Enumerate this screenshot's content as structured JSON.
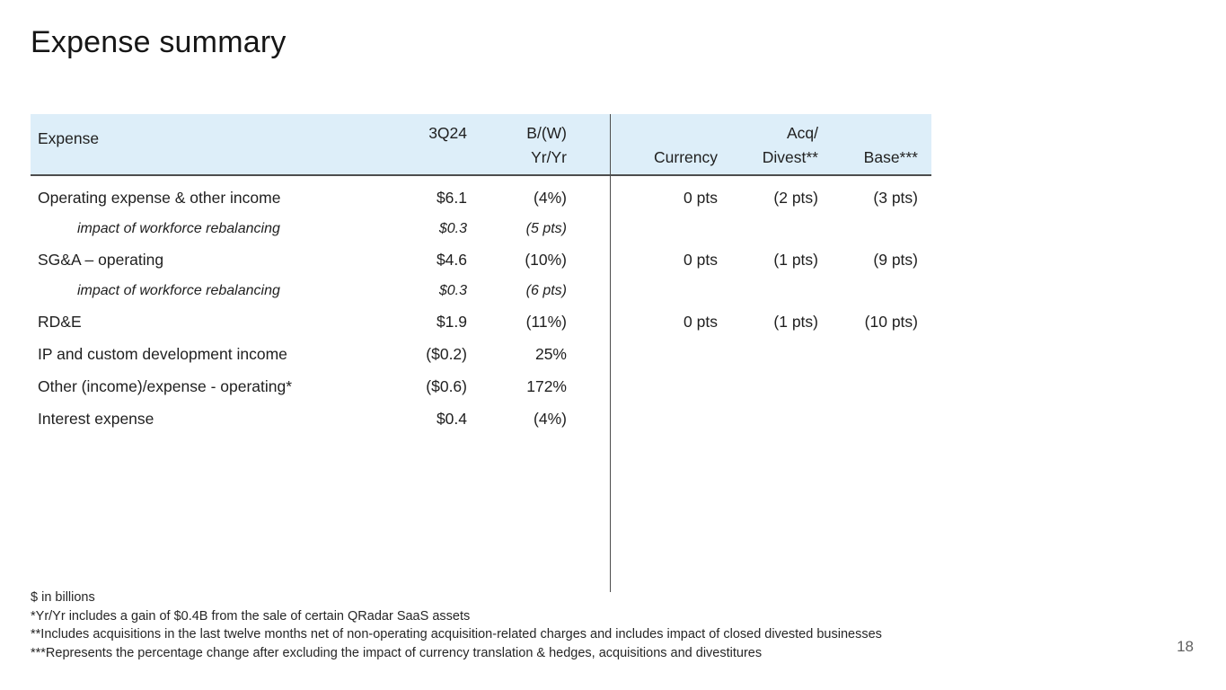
{
  "title": "Expense summary",
  "page_number": "18",
  "colors": {
    "header_bg": "#ddeef9",
    "rule": "#4d4d4d",
    "text": "#1f1f1f",
    "muted": "#5f5f5f"
  },
  "table": {
    "header": {
      "expense": "Expense",
      "q3": "3Q24",
      "bw_line1": "B/(W)",
      "bw_line2": "Yr/Yr",
      "currency": "Currency",
      "acq_line1": "Acq/",
      "acq_line2": "Divest**",
      "base": "Base***"
    },
    "rows": [
      {
        "name": "Operating expense & other income",
        "q3": "$6.1",
        "yryr": "(4%)",
        "currency": "0 pts",
        "divest": "(2 pts)",
        "base": "(3 pts)"
      },
      {
        "name": "impact of workforce rebalancing",
        "q3": "$0.3",
        "yryr": "(5 pts)",
        "currency": "",
        "divest": "",
        "base": ""
      },
      {
        "name": "SG&A – operating",
        "q3": "$4.6",
        "yryr": "(10%)",
        "currency": "0 pts",
        "divest": "(1 pts)",
        "base": "(9 pts)"
      },
      {
        "name": "impact of workforce rebalancing",
        "q3": "$0.3",
        "yryr": "(6 pts)",
        "currency": "",
        "divest": "",
        "base": ""
      },
      {
        "name": "RD&E",
        "q3": "$1.9",
        "yryr": "(11%)",
        "currency": "0 pts",
        "divest": "(1 pts)",
        "base": "(10 pts)"
      },
      {
        "name": "IP and custom development income",
        "q3": "($0.2)",
        "yryr": "25%",
        "currency": "",
        "divest": "",
        "base": ""
      },
      {
        "name": "Other (income)/expense - operating*",
        "q3": "($0.6)",
        "yryr": "172%",
        "currency": "",
        "divest": "",
        "base": ""
      },
      {
        "name": "Interest expense",
        "q3": "$0.4",
        "yryr": "(4%)",
        "currency": "",
        "divest": "",
        "base": ""
      }
    ]
  },
  "footnotes": [
    "$ in billions",
    "*Yr/Yr includes a gain of $0.4B from the sale of certain QRadar SaaS assets",
    "**Includes acquisitions in the last twelve months net of non-operating acquisition-related charges and includes impact of closed divested businesses",
    "***Represents the percentage change after excluding the impact of currency translation & hedges, acquisitions and divestitures"
  ]
}
